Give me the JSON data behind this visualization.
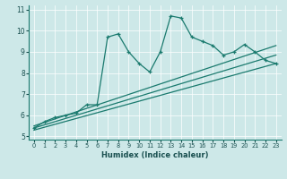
{
  "xlabel": "Humidex (Indice chaleur)",
  "ylabel": "",
  "xlim": [
    -0.5,
    23.5
  ],
  "ylim": [
    4.85,
    11.2
  ],
  "xticks": [
    0,
    1,
    2,
    3,
    4,
    5,
    6,
    7,
    8,
    9,
    10,
    11,
    12,
    13,
    14,
    15,
    16,
    17,
    18,
    19,
    20,
    21,
    22,
    23
  ],
  "yticks": [
    5,
    6,
    7,
    8,
    9,
    10,
    11
  ],
  "bg_color": "#cde8e8",
  "line_color": "#1a7a6e",
  "series1_x": [
    0,
    1,
    2,
    3,
    4,
    5,
    6,
    7,
    8,
    9,
    10,
    11,
    12,
    13,
    14,
    15,
    16,
    17,
    18,
    19,
    20,
    21,
    22,
    23
  ],
  "series1_y": [
    5.4,
    5.7,
    5.9,
    6.0,
    6.1,
    6.5,
    6.5,
    9.7,
    9.85,
    9.0,
    8.45,
    8.05,
    9.0,
    10.7,
    10.6,
    9.7,
    9.5,
    9.3,
    8.85,
    9.0,
    9.35,
    9.0,
    8.6,
    8.45
  ],
  "line2_x": [
    0,
    23
  ],
  "line2_y": [
    5.4,
    8.85
  ],
  "line3_x": [
    0,
    23
  ],
  "line3_y": [
    5.5,
    9.3
  ],
  "line4_x": [
    0,
    23
  ],
  "line4_y": [
    5.3,
    8.45
  ]
}
